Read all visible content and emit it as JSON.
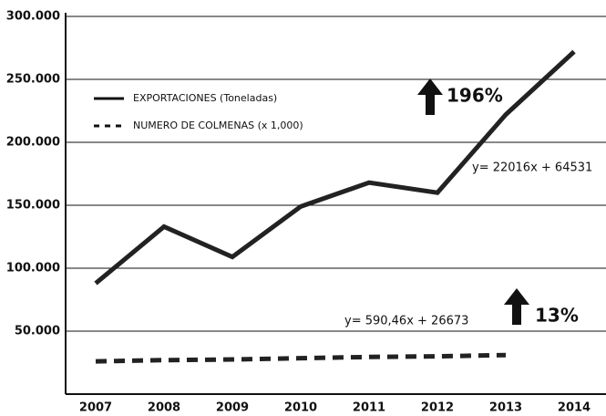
{
  "chart_data": {
    "type": "line",
    "categories": [
      "2007",
      "2008",
      "2009",
      "2010",
      "2011",
      "2012",
      "2013",
      "2014"
    ],
    "series": [
      {
        "name": "EXPORTACIONES (Toneladas)",
        "color": "#222222",
        "values": [
          88000,
          133000,
          109000,
          149000,
          168000,
          160000,
          222000,
          272000
        ]
      },
      {
        "name": "NUMERO DE COLMENAS (x 1,000)",
        "color": "#222222",
        "values": [
          26000,
          27000,
          27500,
          28500,
          29500,
          30000,
          31000,
          null
        ]
      }
    ],
    "ylim": [
      0,
      300000
    ],
    "yticks": [
      {
        "value": 50000,
        "label": "50.000"
      },
      {
        "value": 100000,
        "label": "100.000"
      },
      {
        "value": 150000,
        "label": "150.000"
      },
      {
        "value": 200000,
        "label": "200.000"
      },
      {
        "value": 250000,
        "label": "250.000"
      },
      {
        "value": 300000,
        "label": "300.000"
      }
    ],
    "grid": true,
    "annotations": [
      "196%",
      "y= 22016x + 64531",
      "13%",
      "y= 590,46x + 26673"
    ]
  }
}
